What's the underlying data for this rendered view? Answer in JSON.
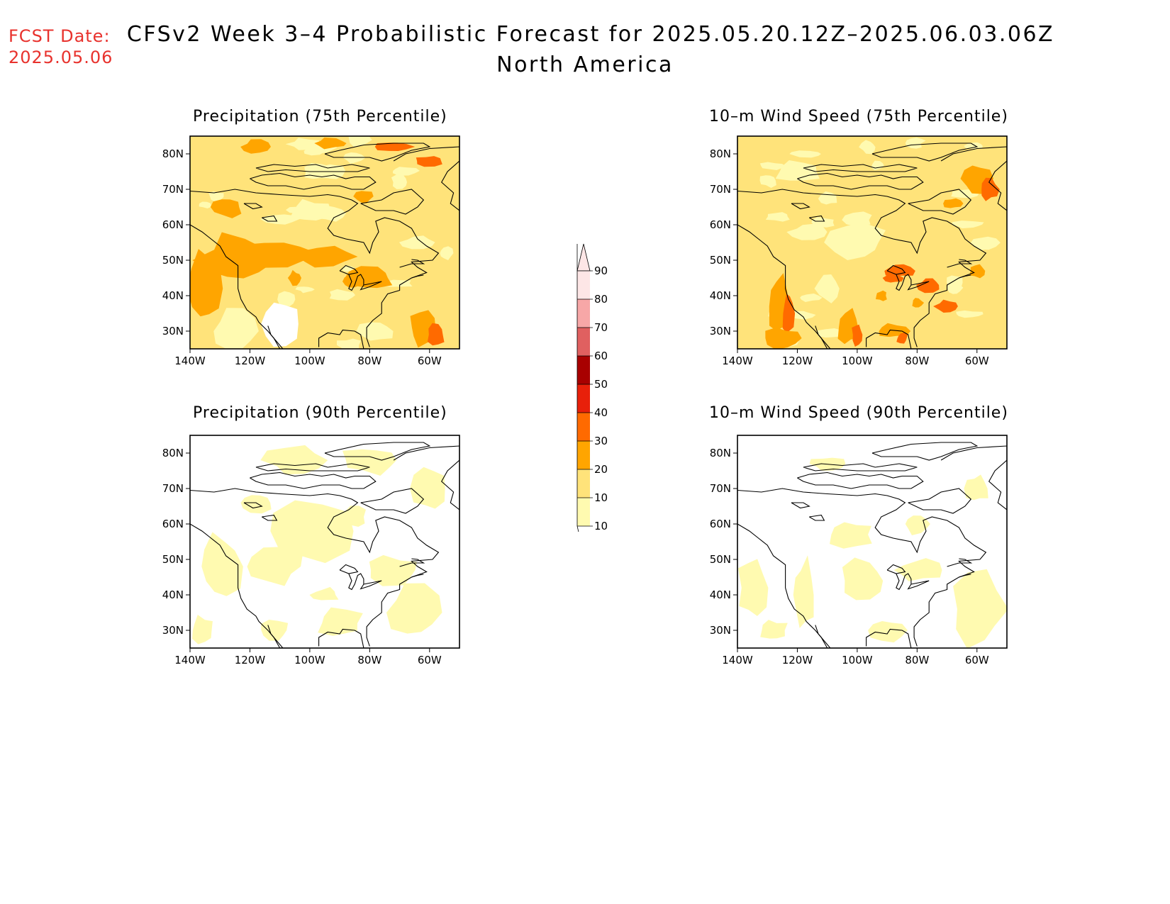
{
  "header": {
    "fcst_label": "FCST Date:",
    "fcst_date": "2025.05.06",
    "title_line1": "CFSv2 Week 3–4 Probabilistic Forecast for 2025.05.20.12Z–2025.06.03.06Z",
    "title_line2": "North America"
  },
  "colors": {
    "c10": "#fffab0",
    "c20": "#ffe37a",
    "c30": "#ffa500",
    "c40": "#ff6a00",
    "c50": "#e8200a",
    "c60": "#a80000",
    "c70": "#e06060",
    "c80": "#f7a7a7",
    "c90": "#fde6e6",
    "coast": "#000000"
  },
  "axes": {
    "lon_ticks": [
      "140W",
      "120W",
      "100W",
      "80W",
      "60W"
    ],
    "lat_ticks": [
      "80N",
      "70N",
      "60N",
      "50N",
      "40N",
      "30N"
    ],
    "lon_range": [
      -140,
      -50
    ],
    "lat_range": [
      25,
      85
    ]
  },
  "colorbar": {
    "levels": [
      "10",
      "20",
      "30",
      "40",
      "50",
      "60",
      "70",
      "80",
      "90"
    ]
  },
  "panels": [
    {
      "id": "p75",
      "title": "Precipitation (75th Percentile)",
      "base": "c20"
    },
    {
      "id": "w75",
      "title": "10–m Wind Speed (75th Percentile)",
      "base": "c20"
    },
    {
      "id": "p90",
      "title": "Precipitation (90th Percentile)",
      "base": "white"
    },
    {
      "id": "w90",
      "title": "10–m Wind Speed (90th Percentile)",
      "base": "white"
    }
  ]
}
